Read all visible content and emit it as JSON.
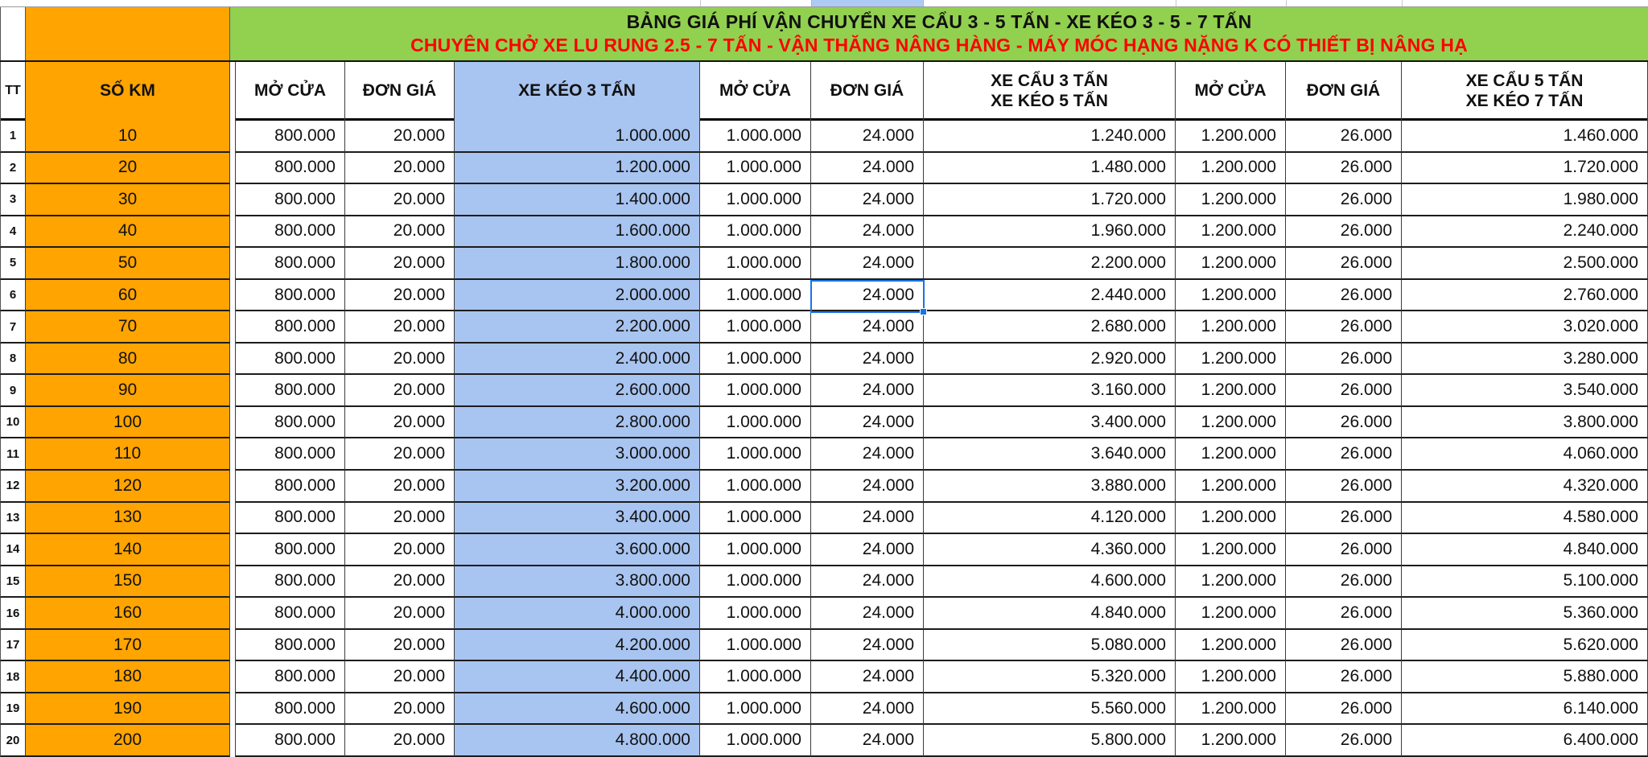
{
  "title": {
    "line1": "BẢNG GIÁ PHÍ VẬN CHUYỂN XE CẨU 3 - 5 TẤN - XE KÉO 3 - 5 - 7 TẤN",
    "line2": "CHUYÊN CHỞ XE LU RUNG 2.5 - 7 TẤN - VẬN THĂNG NÂNG HÀNG - MÁY MÓC HẠNG NẶNG K CÓ THIẾT BỊ NÂNG HẠ"
  },
  "header": {
    "tt": "TT",
    "so_km": "SỐ KM",
    "mo_cua_1": "MỞ CỬA",
    "don_gia_1": "ĐƠN GIÁ",
    "xe_keo_3": "XE KÉO 3 TẤN",
    "mo_cua_2": "MỞ CỬA",
    "don_gia_2": "ĐƠN GIÁ",
    "xe_cau_3_line1": "XE CẨU 3 TẤN",
    "xe_cau_3_line2": "XE KÉO 5 TẤN",
    "mo_cua_3": "MỞ CỬA",
    "don_gia_3": "ĐƠN GIÁ",
    "xe_cau_5_line1": "XE CẨU 5 TẤN",
    "xe_cau_5_line2": "XE KÉO 7 TẤN"
  },
  "rows": [
    [
      "1",
      "10",
      "800.000",
      "20.000",
      "1.000.000",
      "1.000.000",
      "24.000",
      "1.240.000",
      "1.200.000",
      "26.000",
      "1.460.000"
    ],
    [
      "2",
      "20",
      "800.000",
      "20.000",
      "1.200.000",
      "1.000.000",
      "24.000",
      "1.480.000",
      "1.200.000",
      "26.000",
      "1.720.000"
    ],
    [
      "3",
      "30",
      "800.000",
      "20.000",
      "1.400.000",
      "1.000.000",
      "24.000",
      "1.720.000",
      "1.200.000",
      "26.000",
      "1.980.000"
    ],
    [
      "4",
      "40",
      "800.000",
      "20.000",
      "1.600.000",
      "1.000.000",
      "24.000",
      "1.960.000",
      "1.200.000",
      "26.000",
      "2.240.000"
    ],
    [
      "5",
      "50",
      "800.000",
      "20.000",
      "1.800.000",
      "1.000.000",
      "24.000",
      "2.200.000",
      "1.200.000",
      "26.000",
      "2.500.000"
    ],
    [
      "6",
      "60",
      "800.000",
      "20.000",
      "2.000.000",
      "1.000.000",
      "24.000",
      "2.440.000",
      "1.200.000",
      "26.000",
      "2.760.000"
    ],
    [
      "7",
      "70",
      "800.000",
      "20.000",
      "2.200.000",
      "1.000.000",
      "24.000",
      "2.680.000",
      "1.200.000",
      "26.000",
      "3.020.000"
    ],
    [
      "8",
      "80",
      "800.000",
      "20.000",
      "2.400.000",
      "1.000.000",
      "24.000",
      "2.920.000",
      "1.200.000",
      "26.000",
      "3.280.000"
    ],
    [
      "9",
      "90",
      "800.000",
      "20.000",
      "2.600.000",
      "1.000.000",
      "24.000",
      "3.160.000",
      "1.200.000",
      "26.000",
      "3.540.000"
    ],
    [
      "10",
      "100",
      "800.000",
      "20.000",
      "2.800.000",
      "1.000.000",
      "24.000",
      "3.400.000",
      "1.200.000",
      "26.000",
      "3.800.000"
    ],
    [
      "11",
      "110",
      "800.000",
      "20.000",
      "3.000.000",
      "1.000.000",
      "24.000",
      "3.640.000",
      "1.200.000",
      "26.000",
      "4.060.000"
    ],
    [
      "12",
      "120",
      "800.000",
      "20.000",
      "3.200.000",
      "1.000.000",
      "24.000",
      "3.880.000",
      "1.200.000",
      "26.000",
      "4.320.000"
    ],
    [
      "13",
      "130",
      "800.000",
      "20.000",
      "3.400.000",
      "1.000.000",
      "24.000",
      "4.120.000",
      "1.200.000",
      "26.000",
      "4.580.000"
    ],
    [
      "14",
      "140",
      "800.000",
      "20.000",
      "3.600.000",
      "1.000.000",
      "24.000",
      "4.360.000",
      "1.200.000",
      "26.000",
      "4.840.000"
    ],
    [
      "15",
      "150",
      "800.000",
      "20.000",
      "3.800.000",
      "1.000.000",
      "24.000",
      "4.600.000",
      "1.200.000",
      "26.000",
      "5.100.000"
    ],
    [
      "16",
      "160",
      "800.000",
      "20.000",
      "4.000.000",
      "1.000.000",
      "24.000",
      "4.840.000",
      "1.200.000",
      "26.000",
      "5.360.000"
    ],
    [
      "17",
      "170",
      "800.000",
      "20.000",
      "4.200.000",
      "1.000.000",
      "24.000",
      "5.080.000",
      "1.200.000",
      "26.000",
      "5.620.000"
    ],
    [
      "18",
      "180",
      "800.000",
      "20.000",
      "4.400.000",
      "1.000.000",
      "24.000",
      "5.320.000",
      "1.200.000",
      "26.000",
      "5.880.000"
    ],
    [
      "19",
      "190",
      "800.000",
      "20.000",
      "4.600.000",
      "1.000.000",
      "24.000",
      "5.560.000",
      "1.200.000",
      "26.000",
      "6.140.000"
    ],
    [
      "20",
      "200",
      "800.000",
      "20.000",
      "4.800.000",
      "1.000.000",
      "24.000",
      "5.800.000",
      "1.200.000",
      "26.000",
      "6.400.000"
    ]
  ],
  "selection": {
    "row_number": "6",
    "km": "60",
    "column_header": "ĐƠN GIÁ",
    "value": "24.000"
  },
  "colors": {
    "orange": "#FFA400",
    "green": "#92D050",
    "blue": "#A8C4F0",
    "title_red": "#FE0000",
    "selection_blue": "#1A73E8"
  }
}
